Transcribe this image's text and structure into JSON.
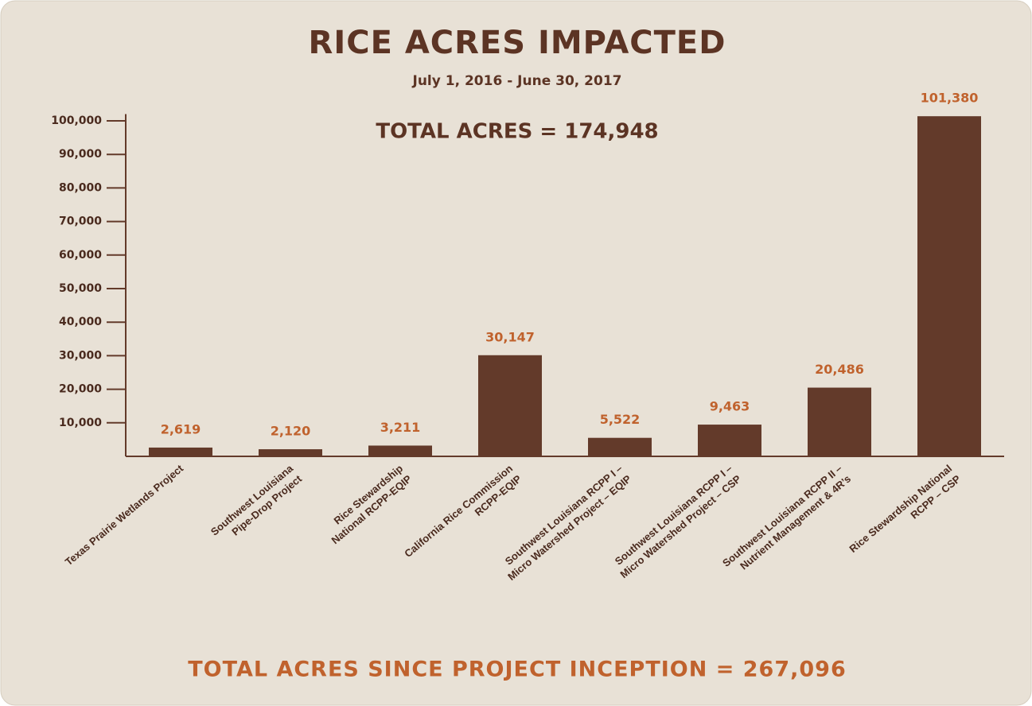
{
  "chart_data": {
    "type": "bar",
    "title": "RICE ACRES IMPACTED",
    "subtitle": "July 1, 2016 - June 30, 2017",
    "annotations": [
      "TOTAL ACRES = 174,948",
      "TOTAL ACRES SINCE PROJECT INCEPTION = 267,096"
    ],
    "categories": [
      [
        "Texas Prairie Wetlands Project"
      ],
      [
        "Southwest Louisiana",
        "Pipe-Drop Project"
      ],
      [
        "Rice Stewardship",
        "National RCPP-EQIP"
      ],
      [
        "California Rice Commission",
        "RCPP-EQIP"
      ],
      [
        "Southwest Louisiana RCPP I –",
        "Micro Watershed Project – EQIP"
      ],
      [
        "Southwest Louisiana RCPP I –",
        "Micro Watershed Project – CSP"
      ],
      [
        "Southwest Louisiana RCPP II –",
        "Nutrient Management & 4R’s"
      ],
      [
        "Rice Stewardship National",
        "RCPP – CSP"
      ]
    ],
    "values": [
      2619,
      2120,
      3211,
      30147,
      5522,
      9463,
      20486,
      101380
    ],
    "value_labels": [
      "2,619",
      "2,120",
      "3,211",
      "30,147",
      "5,522",
      "9,463",
      "20,486",
      "101,380"
    ],
    "color": "#633a2a",
    "ylim": [
      0,
      102000
    ],
    "yticks": [
      {
        "value": 10000,
        "label": "10,000"
      },
      {
        "value": 20000,
        "label": "20,000"
      },
      {
        "value": 30000,
        "label": "30,000"
      },
      {
        "value": 40000,
        "label": "40,000"
      },
      {
        "value": 50000,
        "label": "50,000"
      },
      {
        "value": 60000,
        "label": "60,000"
      },
      {
        "value": 70000,
        "label": "70,000"
      },
      {
        "value": 80000,
        "label": "80,000"
      },
      {
        "value": 90000,
        "label": "90,000"
      },
      {
        "value": 100000,
        "label": "100,000"
      }
    ],
    "grid": false
  }
}
